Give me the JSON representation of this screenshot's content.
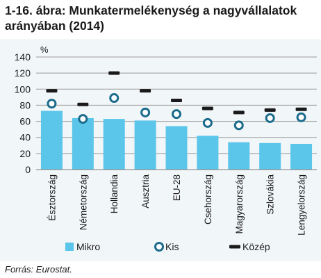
{
  "figure": {
    "title": "1-16. ábra: Munkatermelékenység a nagyvállalatok arányában (2014)",
    "source": "Forrás: Eurostat."
  },
  "chart_data": {
    "type": "bar",
    "ylabel": "%",
    "ylim": [
      0,
      140
    ],
    "yticks": [
      0,
      20,
      40,
      60,
      80,
      100,
      120,
      140
    ],
    "grid": true,
    "legend_position": "bottom",
    "categories": [
      "Észtország",
      "Németország",
      "Hollandia",
      "Ausztria",
      "EU-28",
      "Csehország",
      "Magyarország",
      "Szlovákia",
      "Lengyelország"
    ],
    "series": [
      {
        "name": "Mikro",
        "marker": "bar",
        "color": "#5bc5ea",
        "values": [
          73,
          64,
          63,
          61,
          54,
          42,
          34,
          33,
          32
        ]
      },
      {
        "name": "Kis",
        "marker": "circle",
        "color": "#1b6b8c",
        "values": [
          82,
          63,
          89,
          71,
          69,
          58,
          55,
          64,
          65
        ]
      },
      {
        "name": "Közép",
        "marker": "dash",
        "color": "#1a1a1a",
        "values": [
          98,
          81,
          120,
          98,
          86,
          76,
          71,
          74,
          75
        ]
      }
    ]
  }
}
